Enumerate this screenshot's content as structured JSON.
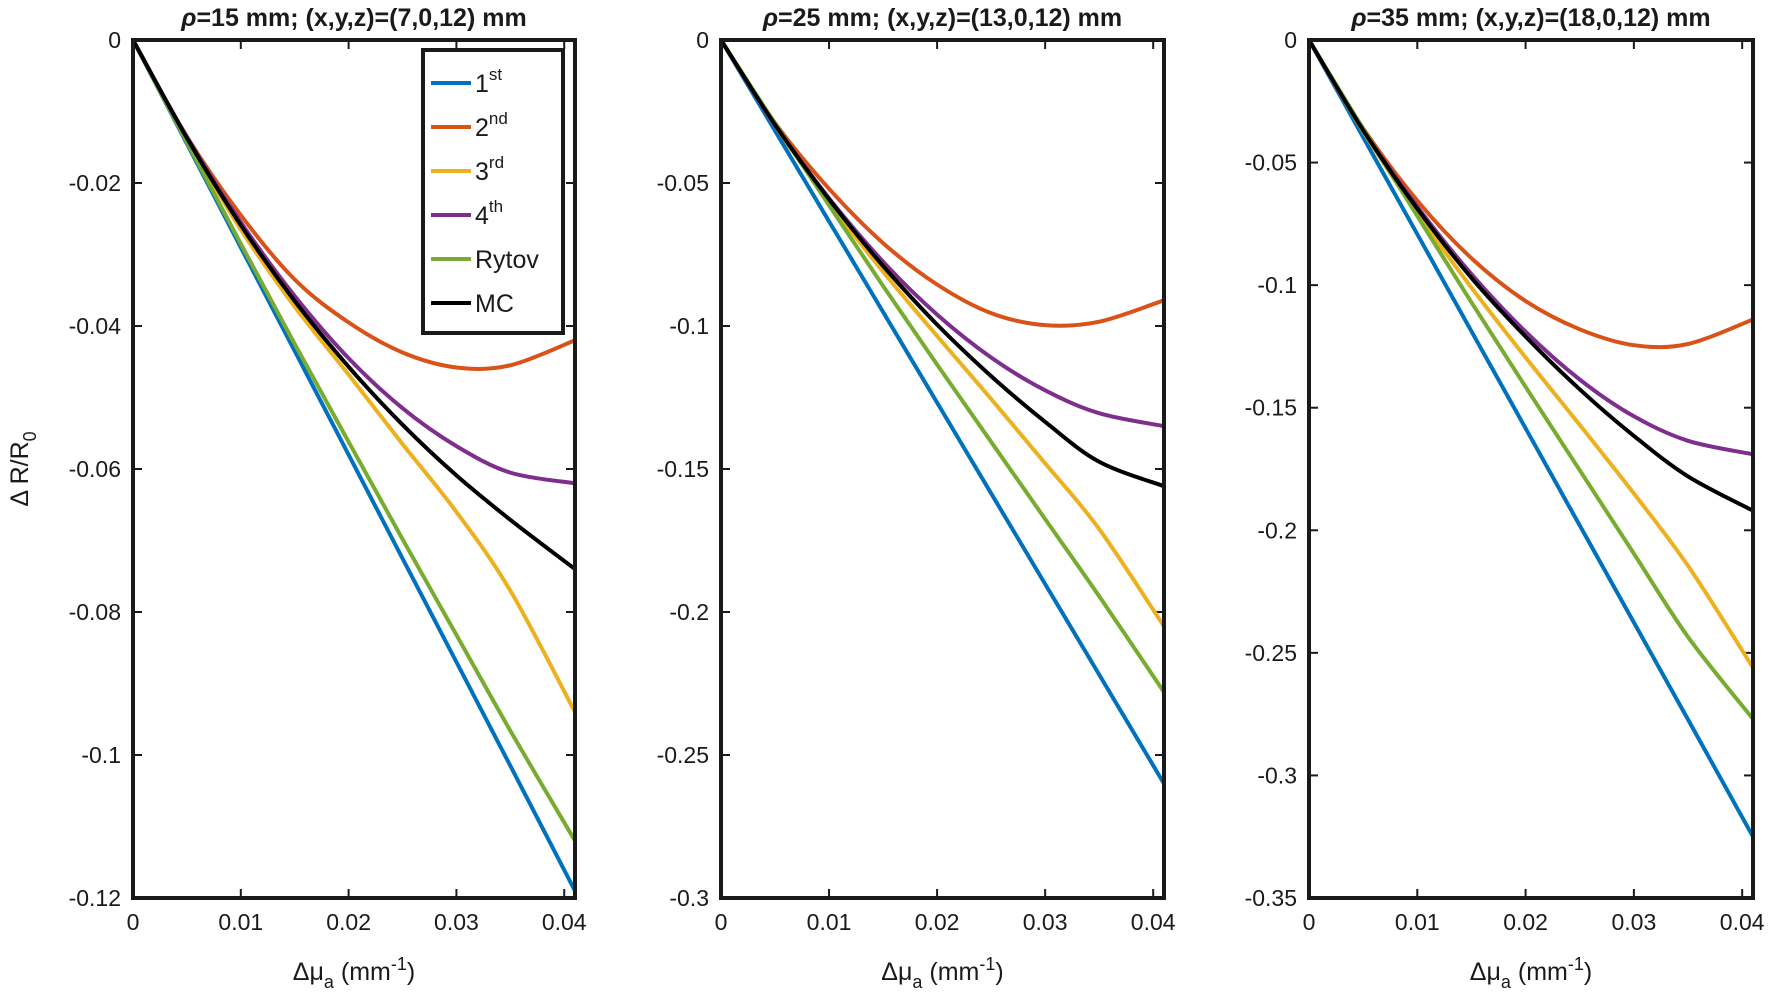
{
  "chart_data": [
    {
      "type": "line",
      "title": "ρ=15 mm; (x,y,z)=(7,0,12) mm",
      "title_rho": "ρ",
      "title_rest": "=15 mm; (x,y,z)=(7,0,12) mm",
      "xlabel_prefix": "Δμ",
      "xlabel_sub": "a",
      "xlabel_unit": " (mm",
      "xlabel_unit_sup": "-1",
      "xlabel_unit_end": ")",
      "ylabel": "Δ R/R",
      "ylabel_sub": "0",
      "xlim": [
        0,
        0.041
      ],
      "ylim": [
        -0.12,
        0
      ],
      "xticks": [
        0,
        0.01,
        0.02,
        0.03,
        0.04
      ],
      "xtick_labels": [
        "0",
        "0.01",
        "0.02",
        "0.03",
        "0.04"
      ],
      "yticks": [
        0,
        -0.02,
        -0.04,
        -0.06,
        -0.08,
        -0.1,
        -0.12
      ],
      "ytick_labels": [
        "0",
        "-0.02",
        "-0.04",
        "-0.06",
        "-0.08",
        "-0.1",
        "-0.12"
      ],
      "x": [
        0,
        0.005,
        0.01,
        0.015,
        0.02,
        0.025,
        0.03,
        0.035,
        0.041
      ],
      "series": [
        {
          "name": "1st",
          "values": [
            0,
            -0.0145,
            -0.029,
            -0.0435,
            -0.058,
            -0.0725,
            -0.087,
            -0.1015,
            -0.119
          ]
        },
        {
          "name": "2nd",
          "values": [
            0,
            -0.0135,
            -0.0245,
            -0.0335,
            -0.0395,
            -0.0437,
            -0.0458,
            -0.0455,
            -0.042
          ]
        },
        {
          "name": "3rd",
          "values": [
            0,
            -0.0138,
            -0.0265,
            -0.0373,
            -0.0468,
            -0.0565,
            -0.066,
            -0.077,
            -0.094
          ]
        },
        {
          "name": "4th",
          "values": [
            0,
            -0.0136,
            -0.0255,
            -0.0358,
            -0.0445,
            -0.0515,
            -0.0568,
            -0.0605,
            -0.062
          ]
        },
        {
          "name": "Rytov",
          "values": [
            0,
            -0.0143,
            -0.0285,
            -0.0425,
            -0.0562,
            -0.0698,
            -0.0832,
            -0.0966,
            -0.112
          ]
        },
        {
          "name": "MC",
          "values": [
            0,
            -0.0137,
            -0.0259,
            -0.0365,
            -0.0457,
            -0.0538,
            -0.0609,
            -0.0671,
            -0.074
          ]
        }
      ]
    },
    {
      "type": "line",
      "title": "ρ=25 mm; (x,y,z)=(13,0,12) mm",
      "title_rho": "ρ",
      "title_rest": "=25 mm; (x,y,z)=(13,0,12) mm",
      "xlabel_prefix": "Δμ",
      "xlabel_sub": "a",
      "xlabel_unit": " (mm",
      "xlabel_unit_sup": "-1",
      "xlabel_unit_end": ")",
      "xlim": [
        0,
        0.041
      ],
      "ylim": [
        -0.3,
        0
      ],
      "xticks": [
        0,
        0.01,
        0.02,
        0.03,
        0.04
      ],
      "xtick_labels": [
        "0",
        "0.01",
        "0.02",
        "0.03",
        "0.04"
      ],
      "yticks": [
        0,
        -0.05,
        -0.1,
        -0.15,
        -0.2,
        -0.25,
        -0.3
      ],
      "ytick_labels": [
        "0",
        "-0.05",
        "-0.1",
        "-0.15",
        "-0.2",
        "-0.25",
        "-0.3"
      ],
      "x": [
        0,
        0.005,
        0.01,
        0.015,
        0.02,
        0.025,
        0.03,
        0.035,
        0.041
      ],
      "series": [
        {
          "name": "1st",
          "values": [
            0,
            -0.0317,
            -0.0634,
            -0.0951,
            -0.1268,
            -0.1585,
            -0.1902,
            -0.2219,
            -0.26
          ]
        },
        {
          "name": "2nd",
          "values": [
            0,
            -0.029,
            -0.052,
            -0.071,
            -0.0855,
            -0.0955,
            -0.0997,
            -0.0985,
            -0.091
          ]
        },
        {
          "name": "3rd",
          "values": [
            0,
            -0.0298,
            -0.0567,
            -0.081,
            -0.1035,
            -0.1255,
            -0.148,
            -0.171,
            -0.205
          ]
        },
        {
          "name": "4th",
          "values": [
            0,
            -0.0296,
            -0.0553,
            -0.0775,
            -0.096,
            -0.111,
            -0.1225,
            -0.1305,
            -0.135
          ]
        },
        {
          "name": "Rytov",
          "values": [
            0,
            -0.0292,
            -0.0578,
            -0.086,
            -0.1135,
            -0.1405,
            -0.1675,
            -0.1945,
            -0.228
          ]
        },
        {
          "name": "MC",
          "values": [
            0,
            -0.0296,
            -0.0557,
            -0.079,
            -0.0995,
            -0.1175,
            -0.1335,
            -0.1475,
            -0.156
          ]
        }
      ]
    },
    {
      "type": "line",
      "title": "ρ=35 mm; (x,y,z)=(18,0,12) mm",
      "title_rho": "ρ",
      "title_rest": "=35 mm; (x,y,z)=(18,0,12) mm",
      "xlabel_prefix": "Δμ",
      "xlabel_sub": "a",
      "xlabel_unit": " (mm",
      "xlabel_unit_sup": "-1",
      "xlabel_unit_end": ")",
      "xlim": [
        0,
        0.041
      ],
      "ylim": [
        -0.35,
        0
      ],
      "xticks": [
        0,
        0.01,
        0.02,
        0.03,
        0.04
      ],
      "xtick_labels": [
        "0",
        "0.01",
        "0.02",
        "0.03",
        "0.04"
      ],
      "yticks": [
        0,
        -0.05,
        -0.1,
        -0.15,
        -0.2,
        -0.25,
        -0.3,
        -0.35
      ],
      "ytick_labels": [
        "0",
        "-0.05",
        "-0.1",
        "-0.15",
        "-0.2",
        "-0.25",
        "-0.3",
        "-0.35"
      ],
      "x": [
        0,
        0.005,
        0.01,
        0.015,
        0.02,
        0.025,
        0.03,
        0.035,
        0.041
      ],
      "series": [
        {
          "name": "1st",
          "values": [
            0,
            -0.0396,
            -0.0792,
            -0.1188,
            -0.1584,
            -0.198,
            -0.2376,
            -0.2772,
            -0.325
          ]
        },
        {
          "name": "2nd",
          "values": [
            0,
            -0.036,
            -0.0655,
            -0.089,
            -0.1065,
            -0.118,
            -0.1245,
            -0.124,
            -0.114
          ]
        },
        {
          "name": "3rd",
          "values": [
            0,
            -0.0372,
            -0.0707,
            -0.101,
            -0.1295,
            -0.157,
            -0.185,
            -0.2145,
            -0.256
          ]
        },
        {
          "name": "4th",
          "values": [
            0,
            -0.0366,
            -0.068,
            -0.0955,
            -0.119,
            -0.1385,
            -0.1535,
            -0.1635,
            -0.169
          ]
        },
        {
          "name": "Rytov",
          "values": [
            0,
            -0.0362,
            -0.0718,
            -0.107,
            -0.1415,
            -0.1755,
            -0.2095,
            -0.2435,
            -0.277
          ]
        },
        {
          "name": "MC",
          "values": [
            0,
            -0.0368,
            -0.0688,
            -0.097,
            -0.121,
            -0.1425,
            -0.1615,
            -0.178,
            -0.192
          ]
        }
      ]
    }
  ],
  "legend": {
    "entries": [
      {
        "base": "1",
        "sup": "st",
        "color": "#0072BD"
      },
      {
        "base": "2",
        "sup": "nd",
        "color": "#D95319"
      },
      {
        "base": "3",
        "sup": "rd",
        "color": "#EDB120"
      },
      {
        "base": "4",
        "sup": "th",
        "color": "#7E2F8E"
      },
      {
        "base": "Rytov",
        "sup": "",
        "color": "#77AC30"
      },
      {
        "base": "MC",
        "sup": "",
        "color": "#000000"
      }
    ],
    "placement": "top-right of first panel"
  },
  "colors": {
    "1st": "#0072BD",
    "2nd": "#D95319",
    "3rd": "#EDB120",
    "4th": "#7E2F8E",
    "Rytov": "#77AC30",
    "MC": "#000000"
  }
}
